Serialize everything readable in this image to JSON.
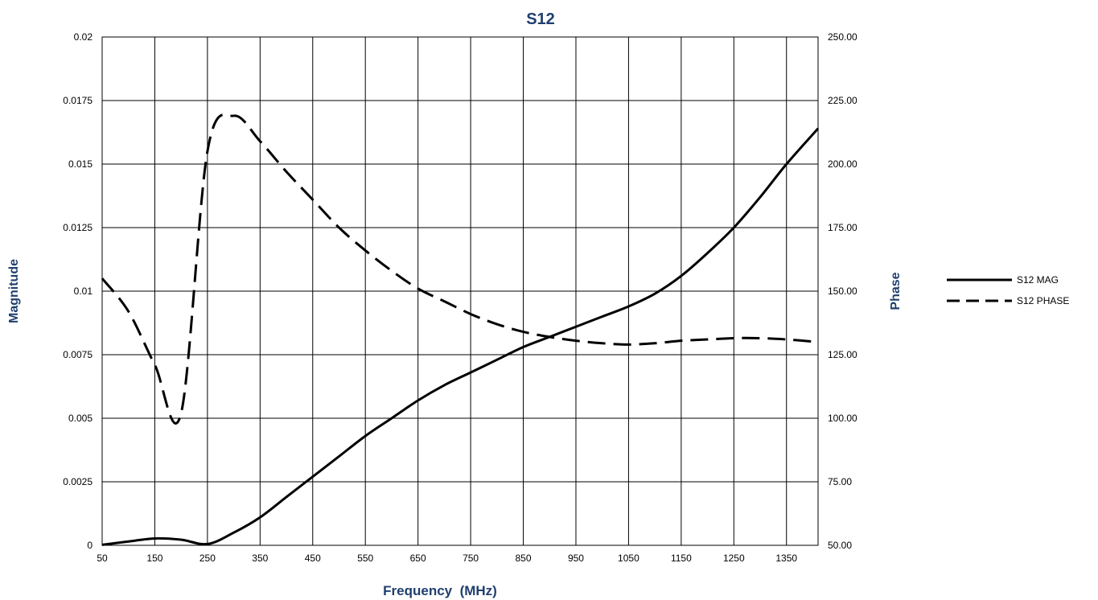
{
  "chart_data": {
    "type": "line",
    "title": "S12",
    "xlabel": "Frequency  (MHz)",
    "ylabel": "Magnitude",
    "y2label": "Phase",
    "xlim": [
      50,
      1410
    ],
    "ylim": [
      0,
      0.02
    ],
    "y2lim": [
      50,
      250
    ],
    "x_ticks": [
      "50",
      "150",
      "250",
      "350",
      "450",
      "550",
      "650",
      "750",
      "850",
      "950",
      "1050",
      "1150",
      "1250",
      "1350"
    ],
    "x_tick_values": [
      50,
      150,
      250,
      350,
      450,
      550,
      650,
      750,
      850,
      950,
      1050,
      1150,
      1250,
      1350
    ],
    "y_ticks": [
      "0",
      "0.0025",
      "0.005",
      "0.0075",
      "0.01",
      "0.0125",
      "0.015",
      "0.0175",
      "0.02"
    ],
    "y_tick_values": [
      0,
      0.0025,
      0.005,
      0.0075,
      0.01,
      0.0125,
      0.015,
      0.0175,
      0.02
    ],
    "y2_ticks": [
      "50.00",
      "75.00",
      "100.00",
      "125.00",
      "150.00",
      "175.00",
      "200.00",
      "225.00",
      "250.00"
    ],
    "y2_tick_values": [
      50,
      75,
      100,
      125,
      150,
      175,
      200,
      225,
      250
    ],
    "grid": true,
    "legend_position": "right",
    "series": [
      {
        "name": "S12 MAG",
        "axis": "left",
        "style": "solid",
        "color": "#000000",
        "x": [
          50,
          100,
          150,
          200,
          250,
          300,
          350,
          400,
          450,
          500,
          550,
          600,
          650,
          700,
          750,
          800,
          850,
          900,
          950,
          1000,
          1050,
          1100,
          1150,
          1200,
          1250,
          1300,
          1350,
          1410
        ],
        "y": [
          2e-05,
          0.00015,
          0.00027,
          0.00022,
          5e-05,
          0.0005,
          0.0011,
          0.0019,
          0.0027,
          0.0035,
          0.0043,
          0.005,
          0.0057,
          0.0063,
          0.0068,
          0.0073,
          0.0078,
          0.0082,
          0.0086,
          0.009,
          0.0094,
          0.0099,
          0.0106,
          0.0115,
          0.0125,
          0.0137,
          0.015,
          0.0164
        ]
      },
      {
        "name": "S12 PHASE",
        "axis": "right",
        "style": "dashed",
        "color": "#000000",
        "x": [
          50,
          100,
          150,
          200,
          250,
          300,
          350,
          400,
          450,
          500,
          550,
          600,
          650,
          700,
          750,
          800,
          850,
          900,
          950,
          1000,
          1050,
          1100,
          1150,
          1200,
          1250,
          1300,
          1350,
          1410
        ],
        "y": [
          155,
          142,
          121,
          102,
          205,
          219,
          209,
          197,
          186,
          175,
          166,
          158,
          151,
          146,
          141,
          137,
          134,
          132,
          130.5,
          129.5,
          129,
          129.5,
          130.5,
          131,
          131.5,
          131.5,
          131,
          130
        ]
      }
    ]
  }
}
